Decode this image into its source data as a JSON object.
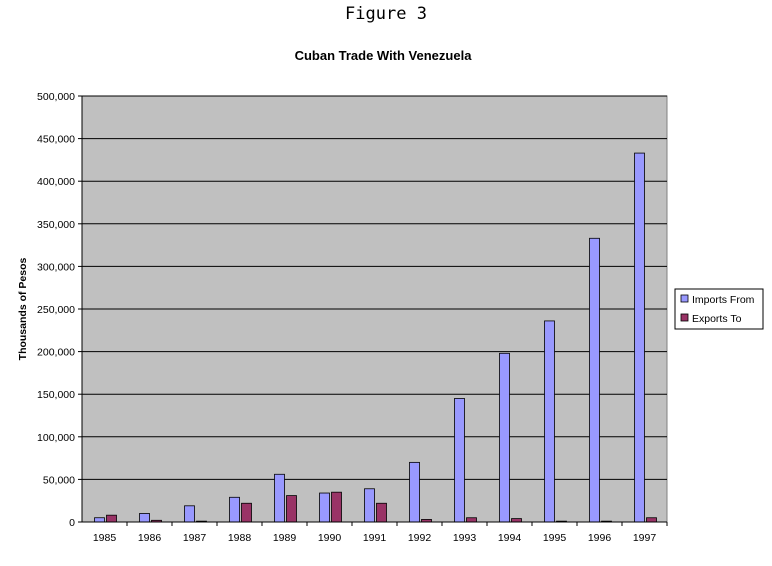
{
  "figure_label": "Figure 3",
  "chart_data": {
    "type": "bar",
    "title": "Cuban Trade With Venezuela",
    "xlabel": "",
    "ylabel": "Thousands of Pesos",
    "categories": [
      "1985",
      "1986",
      "1987",
      "1988",
      "1989",
      "1990",
      "1991",
      "1992",
      "1993",
      "1994",
      "1995",
      "1996",
      "1997"
    ],
    "series": [
      {
        "name": "Imports From",
        "color": "#9999ff",
        "values": [
          5000,
          10000,
          19000,
          29000,
          56000,
          34000,
          39000,
          70000,
          145000,
          198000,
          236000,
          333000,
          433000
        ]
      },
      {
        "name": "Exports To",
        "color": "#993366",
        "values": [
          8000,
          2000,
          1000,
          22000,
          31000,
          35000,
          22000,
          3000,
          5000,
          4000,
          1000,
          1000,
          5000
        ]
      }
    ],
    "ylim": [
      0,
      500000
    ],
    "yticks": [
      "0",
      "50,000",
      "100,000",
      "150,000",
      "200,000",
      "250,000",
      "300,000",
      "350,000",
      "400,000",
      "450,000",
      "500,000"
    ],
    "grid": true,
    "plot_background": "#c0c0c0",
    "legend_position": "right"
  }
}
